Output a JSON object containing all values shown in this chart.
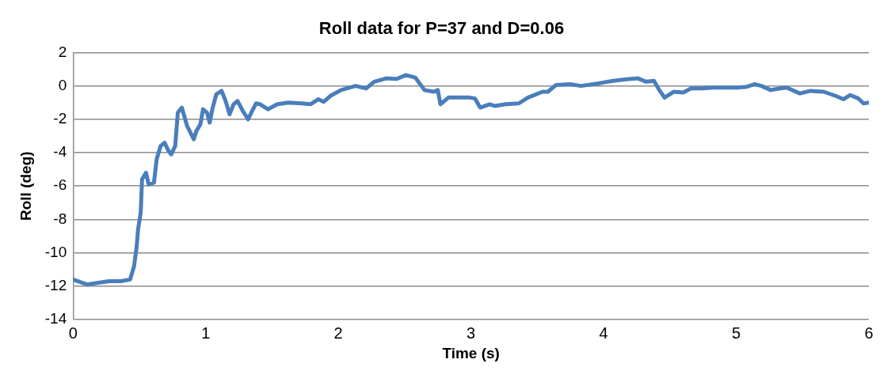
{
  "chart_data": {
    "type": "line",
    "title": "Roll data for P=37 and D=0.06",
    "xlabel": "Time (s)",
    "ylabel": "Roll (deg)",
    "x": [
      0,
      0.105,
      0.19,
      0.27,
      0.36,
      0.43,
      0.46,
      0.48,
      0.49,
      0.51,
      0.52,
      0.55,
      0.57,
      0.61,
      0.63,
      0.66,
      0.69,
      0.72,
      0.74,
      0.77,
      0.79,
      0.82,
      0.86,
      0.91,
      0.93,
      0.96,
      0.98,
      1.01,
      1.03,
      1.05,
      1.08,
      1.12,
      1.15,
      1.18,
      1.21,
      1.24,
      1.28,
      1.32,
      1.35,
      1.38,
      1.41,
      1.47,
      1.54,
      1.62,
      1.73,
      1.79,
      1.85,
      1.89,
      1.94,
      2.02,
      2.13,
      2.21,
      2.27,
      2.36,
      2.44,
      2.51,
      2.58,
      2.65,
      2.72,
      2.75,
      2.77,
      2.83,
      2.91,
      2.99,
      3.03,
      3.07,
      3.14,
      3.18,
      3.26,
      3.36,
      3.43,
      3.54,
      3.58,
      3.64,
      3.75,
      3.83,
      3.96,
      4.07,
      4.17,
      4.26,
      4.32,
      4.38,
      4.42,
      4.46,
      4.53,
      4.6,
      4.66,
      4.74,
      4.83,
      4.93,
      5.01,
      5.08,
      5.14,
      5.19,
      5.26,
      5.33,
      5.38,
      5.48,
      5.56,
      5.66,
      5.75,
      5.81,
      5.86,
      5.92,
      5.96,
      6
    ],
    "series": [
      {
        "color": "#4a7ebb",
        "values": [
          -11.6,
          -11.9,
          -11.8,
          -11.7,
          -11.7,
          -11.6,
          -10.8,
          -9.6,
          -8.6,
          -7.6,
          -5.6,
          -5.2,
          -5.9,
          -5.8,
          -4.4,
          -3.6,
          -3.4,
          -3.9,
          -4.1,
          -3.6,
          -1.6,
          -1.3,
          -2.4,
          -3.2,
          -2.7,
          -2.3,
          -1.4,
          -1.6,
          -2.2,
          -1.4,
          -0.5,
          -0.3,
          -0.9,
          -1.7,
          -1.1,
          -0.9,
          -1.5,
          -2,
          -1.5,
          -1.05,
          -1.1,
          -1.4,
          -1.1,
          -1,
          -1.05,
          -1.1,
          -0.8,
          -0.95,
          -0.6,
          -0.25,
          0,
          -0.15,
          0.25,
          0.45,
          0.42,
          0.65,
          0.5,
          -0.25,
          -0.35,
          -0.25,
          -1.1,
          -0.7,
          -0.7,
          -0.7,
          -0.75,
          -1.3,
          -1.1,
          -1.2,
          -1.1,
          -1.05,
          -0.7,
          -0.35,
          -0.35,
          0.05,
          0.1,
          0,
          0.15,
          0.3,
          0.4,
          0.45,
          0.25,
          0.3,
          -0.25,
          -0.7,
          -0.35,
          -0.4,
          -0.15,
          -0.15,
          -0.1,
          -0.1,
          -0.1,
          -0.05,
          0.1,
          0,
          -0.25,
          -0.15,
          -0.1,
          -0.45,
          -0.3,
          -0.35,
          -0.6,
          -0.8,
          -0.55,
          -0.75,
          -1.05,
          -1
        ]
      }
    ],
    "xlim": [
      0,
      6
    ],
    "xticks": [
      0,
      1,
      2,
      3,
      4,
      5,
      6
    ],
    "ylim": [
      -14,
      2
    ],
    "yticks": [
      -14,
      -12,
      -10,
      -8,
      -6,
      -4,
      -2,
      0,
      2
    ],
    "grid": "y",
    "marker": "none",
    "line_style": "solid"
  }
}
